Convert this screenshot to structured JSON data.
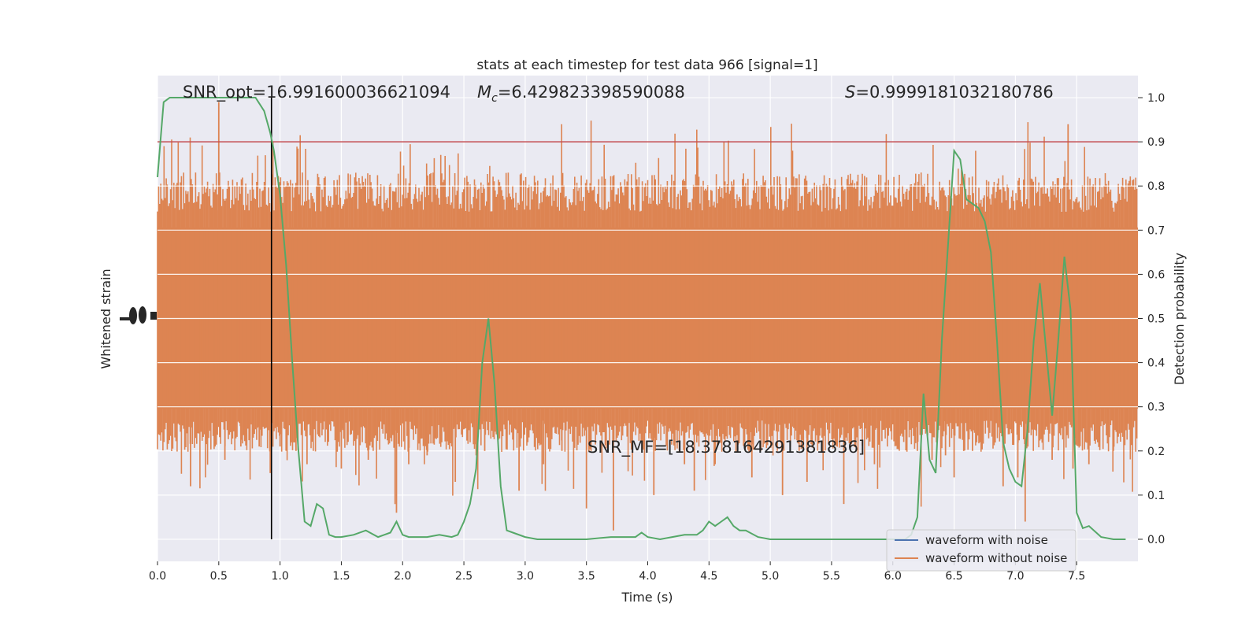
{
  "title": "stats at each timestep for test data 966 [signal=1]",
  "annotations": {
    "snr_opt": "SNR_opt=16.991600036621094",
    "mc_prefix": "M",
    "mc_sub": "c",
    "mc_value": "=6.429823398590088",
    "s_prefix": "S",
    "s_value": "=0.9999181032180786",
    "snr_mf": "SNR_MF=[18.378164291381836]"
  },
  "legend": {
    "items": [
      {
        "label": "waveform with noise",
        "color": "#4c72b0"
      },
      {
        "label": "waveform without noise",
        "color": "#dd8452"
      }
    ]
  },
  "colors": {
    "plot_background": "#eaeaf2",
    "grid": "#ffffff",
    "noise_trace": "#dd8452",
    "probability_line": "#55a868",
    "threshold_line": "#c44e52",
    "marker_line": "#000000"
  },
  "chart_data": {
    "type": "line",
    "title": "stats at each timestep for test data 966 [signal=1]",
    "xlabel": "Time (s)",
    "ylabel_left": "Whitened strain",
    "ylabel_right": "Detection probability",
    "xlim": [
      0,
      8
    ],
    "ylim_right": [
      -0.05,
      1.05
    ],
    "x_ticks": [
      0.0,
      0.5,
      1.0,
      1.5,
      2.0,
      2.5,
      3.0,
      3.5,
      4.0,
      4.5,
      5.0,
      5.5,
      6.0,
      6.5,
      7.0,
      7.5
    ],
    "x_tick_labels": [
      "0.0",
      "0.5",
      "1.0",
      "1.5",
      "2.0",
      "2.5",
      "3.0",
      "3.5",
      "4.0",
      "4.5",
      "5.0",
      "5.5",
      "6.0",
      "6.5",
      "7.0",
      "7.5"
    ],
    "y_right_ticks": [
      0.0,
      0.1,
      0.2,
      0.3,
      0.4,
      0.5,
      0.6,
      0.7,
      0.8,
      0.9,
      1.0
    ],
    "y_right_tick_labels": [
      "0.0",
      "0.1",
      "0.2",
      "0.3",
      "0.4",
      "0.5",
      "0.6",
      "0.7",
      "0.8",
      "0.9",
      "1.0"
    ],
    "threshold": 0.9,
    "marker_time": 0.93,
    "grid": true,
    "legend_position": "lower-right",
    "series": [
      {
        "name": "Detection probability",
        "color": "#55a868",
        "axis": "right",
        "x": [
          0.0,
          0.05,
          0.1,
          0.2,
          0.3,
          0.4,
          0.5,
          0.6,
          0.7,
          0.8,
          0.87,
          0.92,
          0.95,
          1.0,
          1.05,
          1.1,
          1.15,
          1.2,
          1.25,
          1.3,
          1.35,
          1.4,
          1.45,
          1.5,
          1.6,
          1.7,
          1.8,
          1.85,
          1.9,
          1.95,
          2.0,
          2.05,
          2.1,
          2.2,
          2.3,
          2.4,
          2.45,
          2.5,
          2.55,
          2.6,
          2.65,
          2.7,
          2.75,
          2.8,
          2.85,
          2.9,
          3.0,
          3.1,
          3.3,
          3.5,
          3.7,
          3.8,
          3.9,
          3.95,
          4.0,
          4.1,
          4.2,
          4.3,
          4.4,
          4.45,
          4.5,
          4.55,
          4.6,
          4.65,
          4.7,
          4.75,
          4.8,
          4.9,
          5.0,
          5.2,
          5.4,
          5.6,
          5.8,
          6.0,
          6.1,
          6.15,
          6.2,
          6.25,
          6.3,
          6.35,
          6.4,
          6.5,
          6.55,
          6.6,
          6.7,
          6.75,
          6.8,
          6.85,
          6.9,
          6.95,
          7.0,
          7.05,
          7.1,
          7.15,
          7.2,
          7.3,
          7.35,
          7.4,
          7.45,
          7.5,
          7.55,
          7.6,
          7.7,
          7.8,
          7.9
        ],
        "y": [
          0.82,
          0.99,
          1.0,
          1.0,
          1.0,
          1.0,
          1.0,
          1.0,
          1.0,
          1.0,
          0.97,
          0.92,
          0.88,
          0.78,
          0.62,
          0.4,
          0.2,
          0.04,
          0.03,
          0.08,
          0.07,
          0.01,
          0.005,
          0.005,
          0.01,
          0.02,
          0.005,
          0.01,
          0.015,
          0.04,
          0.01,
          0.005,
          0.005,
          0.005,
          0.01,
          0.005,
          0.01,
          0.04,
          0.08,
          0.16,
          0.4,
          0.5,
          0.35,
          0.12,
          0.02,
          0.015,
          0.005,
          0.0,
          0.0,
          0.0,
          0.005,
          0.005,
          0.005,
          0.015,
          0.005,
          0.0,
          0.005,
          0.01,
          0.01,
          0.02,
          0.04,
          0.03,
          0.04,
          0.05,
          0.03,
          0.02,
          0.02,
          0.005,
          0.0,
          0.0,
          0.0,
          0.0,
          0.0,
          0.0,
          0.0,
          0.01,
          0.05,
          0.33,
          0.18,
          0.15,
          0.45,
          0.88,
          0.86,
          0.77,
          0.75,
          0.72,
          0.65,
          0.45,
          0.22,
          0.16,
          0.13,
          0.12,
          0.25,
          0.45,
          0.58,
          0.28,
          0.45,
          0.64,
          0.52,
          0.06,
          0.025,
          0.03,
          0.005,
          0.0,
          0.0
        ]
      },
      {
        "name": "waveform without noise",
        "color": "#dd8452",
        "axis": "left",
        "x": [
          0.1,
          0.2,
          0.27,
          0.35,
          0.47,
          0.5,
          0.55,
          0.68,
          0.83,
          0.92,
          1.0,
          1.13,
          1.22,
          1.5,
          1.72,
          1.95,
          2.05,
          2.2,
          2.43,
          2.6,
          2.67,
          2.95,
          3.15,
          3.3,
          3.5,
          3.72,
          4.05,
          4.3,
          4.38,
          4.55,
          4.85,
          5.1,
          5.3,
          5.6,
          5.85,
          6.2,
          6.32,
          6.43,
          6.5,
          6.65,
          6.9,
          7.02,
          7.08,
          7.3,
          7.43,
          7.47,
          7.6,
          7.8
        ],
        "y": [
          0.24,
          0.26,
          0.12,
          0.28,
          0.21,
          0.99,
          0.18,
          0.21,
          0.21,
          0.15,
          0.21,
          0.2,
          0.17,
          0.16,
          0.18,
          0.06,
          0.17,
          0.19,
          0.13,
          0.19,
          0.2,
          0.11,
          0.17,
          0.2,
          0.07,
          0.02,
          0.1,
          0.17,
          0.11,
          0.17,
          0.14,
          0.1,
          0.13,
          0.08,
          0.17,
          0.2,
          0.18,
          0.19,
          0.14,
          0.2,
          0.12,
          0.14,
          0.04,
          0.18,
          0.94,
          0.16,
          0.17,
          0.2
        ]
      },
      {
        "name": "waveform with noise",
        "color": "#4c72b0",
        "axis": "left",
        "x": [],
        "y": []
      }
    ]
  }
}
